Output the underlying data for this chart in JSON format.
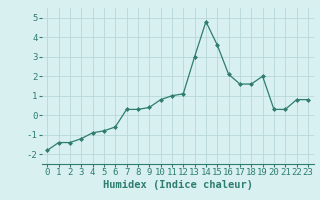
{
  "x": [
    0,
    1,
    2,
    3,
    4,
    5,
    6,
    7,
    8,
    9,
    10,
    11,
    12,
    13,
    14,
    15,
    16,
    17,
    18,
    19,
    20,
    21,
    22,
    23
  ],
  "y": [
    -1.8,
    -1.4,
    -1.4,
    -1.2,
    -0.9,
    -0.8,
    -0.6,
    0.3,
    0.3,
    0.4,
    0.8,
    1.0,
    1.1,
    3.0,
    4.8,
    3.6,
    2.1,
    1.6,
    1.6,
    2.0,
    0.3,
    0.3,
    0.8,
    0.8
  ],
  "line_color": "#2e7d6e",
  "marker": "D",
  "marker_size": 2,
  "bg_color": "#d8f0f0",
  "grid_color": "#b8d8d8",
  "xlabel": "Humidex (Indice chaleur)",
  "ylim": [
    -2.5,
    5.5
  ],
  "xlim": [
    -0.5,
    23.5
  ],
  "yticks": [
    -2,
    -1,
    0,
    1,
    2,
    3,
    4,
    5
  ],
  "xticks": [
    0,
    1,
    2,
    3,
    4,
    5,
    6,
    7,
    8,
    9,
    10,
    11,
    12,
    13,
    14,
    15,
    16,
    17,
    18,
    19,
    20,
    21,
    22,
    23
  ],
  "tick_fontsize": 6.5,
  "label_fontsize": 7.5
}
